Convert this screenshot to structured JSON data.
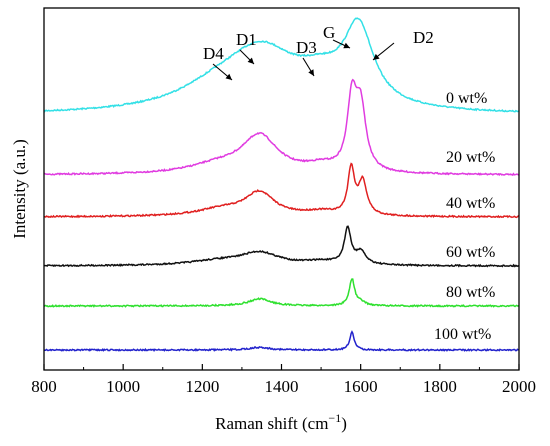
{
  "chart_data": {
    "type": "line",
    "title": "",
    "xlabel": "Raman shift (cm",
    "xlabel_sup": "−1",
    "xlabel_end": ")",
    "ylabel": "Intensity (a.u.)",
    "xlim": [
      800,
      2000
    ],
    "x_ticks": [
      800,
      1000,
      1200,
      1400,
      1600,
      1800,
      2000
    ],
    "y_ticks_shown": false,
    "grid": false,
    "legend": "labels placed at right end of each curve",
    "peak_labels": [
      {
        "text": "D4",
        "x": 1230
      },
      {
        "text": "D1",
        "x": 1325
      },
      {
        "text": "D3",
        "x": 1485
      },
      {
        "text": "G",
        "x": 1575
      },
      {
        "text": "D2",
        "x": 1625
      }
    ],
    "series": [
      {
        "name": "0 wt%",
        "color": "#33e0e6",
        "baseline": 0,
        "peaks": [
          {
            "center": 1240,
            "height": 0.22,
            "width": 130
          },
          {
            "center": 1350,
            "height": 0.62,
            "width": 110
          },
          {
            "center": 1500,
            "height": 0.28,
            "width": 80
          },
          {
            "center": 1595,
            "height": 0.85,
            "width": 45
          }
        ]
      },
      {
        "name": "20 wt%",
        "color": "#e03ce0",
        "baseline": 0,
        "peaks": [
          {
            "center": 1240,
            "height": 0.1,
            "width": 90
          },
          {
            "center": 1345,
            "height": 0.42,
            "width": 55
          },
          {
            "center": 1500,
            "height": 0.08,
            "width": 50
          },
          {
            "center": 1578,
            "height": 0.78,
            "width": 14
          },
          {
            "center": 1600,
            "height": 0.7,
            "width": 16
          }
        ]
      },
      {
        "name": "40 wt%",
        "color": "#e02020",
        "baseline": 0,
        "peaks": [
          {
            "center": 1250,
            "height": 0.08,
            "width": 80
          },
          {
            "center": 1345,
            "height": 0.26,
            "width": 45
          },
          {
            "center": 1500,
            "height": 0.05,
            "width": 50
          },
          {
            "center": 1576,
            "height": 0.52,
            "width": 10
          },
          {
            "center": 1605,
            "height": 0.38,
            "width": 13
          }
        ]
      },
      {
        "name": "60 wt%",
        "color": "#111111",
        "baseline": 0,
        "peaks": [
          {
            "center": 1240,
            "height": 0.05,
            "width": 90
          },
          {
            "center": 1345,
            "height": 0.14,
            "width": 60
          },
          {
            "center": 1500,
            "height": 0.04,
            "width": 50
          },
          {
            "center": 1567,
            "height": 0.4,
            "width": 10
          },
          {
            "center": 1600,
            "height": 0.14,
            "width": 16
          }
        ]
      },
      {
        "name": "80 wt%",
        "color": "#2ee02e",
        "baseline": 0,
        "peaks": [
          {
            "center": 1345,
            "height": 0.08,
            "width": 35
          },
          {
            "center": 1578,
            "height": 0.3,
            "width": 8
          },
          {
            "center": 1600,
            "height": 0.04,
            "width": 15
          }
        ]
      },
      {
        "name": "100 wt%",
        "color": "#2222cc",
        "baseline": 0,
        "peaks": [
          {
            "center": 1345,
            "height": 0.03,
            "width": 30
          },
          {
            "center": 1578,
            "height": 0.2,
            "width": 7
          }
        ]
      }
    ]
  }
}
